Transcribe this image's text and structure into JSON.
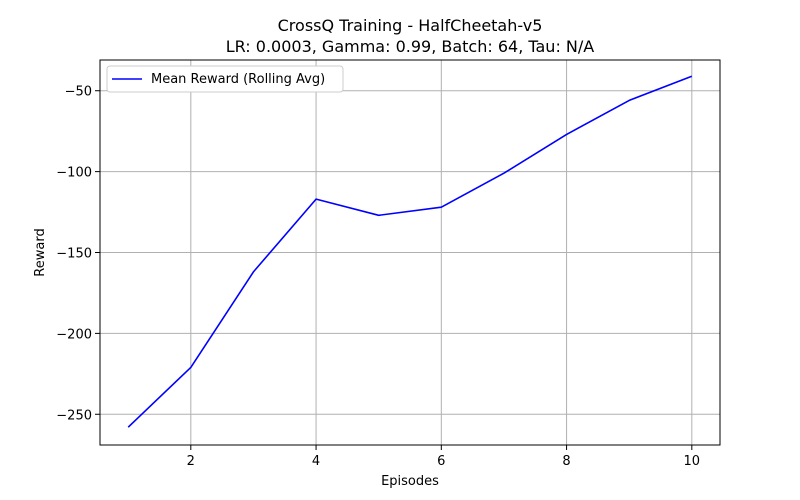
{
  "chart_data": {
    "type": "line",
    "title": "CrossQ Training - HalfCheetah-v5",
    "subtitle": "LR: 0.0003, Gamma: 0.99, Batch: 64, Tau: N/A",
    "xlabel": "Episodes",
    "ylabel": "Reward",
    "xlim": [
      0.55,
      10.45
    ],
    "ylim": [
      -269,
      -31
    ],
    "xticks": [
      2,
      4,
      6,
      8,
      10
    ],
    "xtick_labels": [
      "2",
      "4",
      "6",
      "8",
      "10"
    ],
    "yticks": [
      -250,
      -200,
      -150,
      -100,
      -50
    ],
    "ytick_labels": [
      "−250",
      "−200",
      "−150",
      "−100",
      "−50"
    ],
    "grid": true,
    "legend_position": "upper-left",
    "series": [
      {
        "name": "Mean Reward (Rolling Avg)",
        "color": "#0000ff",
        "x": [
          1,
          2,
          3,
          4,
          5,
          6,
          7,
          8,
          9,
          10
        ],
        "y": [
          -258,
          -221,
          -162,
          -117,
          -127,
          -122,
          -101,
          -77,
          -56,
          -41
        ]
      }
    ]
  }
}
